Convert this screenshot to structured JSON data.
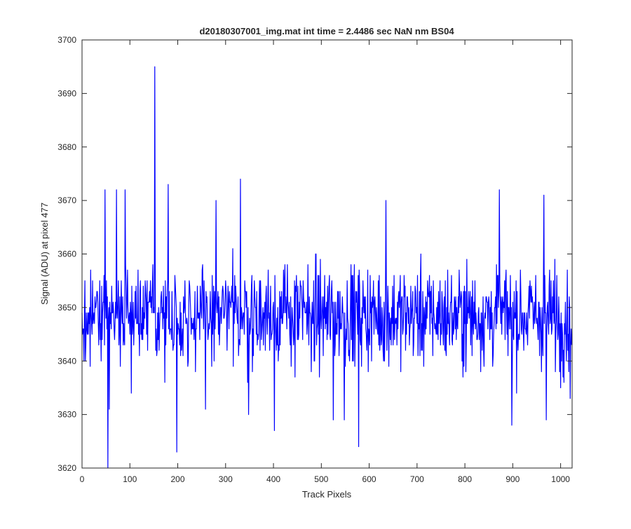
{
  "chart_data": {
    "type": "line",
    "title": "d20180307001_img.mat int time = 2.4486 sec  NaN nm BS04",
    "xlabel": "Track Pixels",
    "ylabel": "Signal (ADU) at pixel 477",
    "xlim": [
      0,
      1024
    ],
    "ylim": [
      3620,
      3700
    ],
    "xticks": [
      0,
      100,
      200,
      300,
      400,
      500,
      600,
      700,
      800,
      900,
      1000
    ],
    "yticks": [
      3620,
      3630,
      3640,
      3650,
      3660,
      3670,
      3680,
      3690,
      3700
    ],
    "grid": false,
    "line_color": "#0000ff",
    "series": [
      {
        "name": "",
        "n_points": 1024,
        "baseline": 3648.5,
        "peaks": [
          {
            "x": 152,
            "y": 3695
          },
          {
            "x": 331,
            "y": 3674
          },
          {
            "x": 48,
            "y": 3672
          },
          {
            "x": 72,
            "y": 3672
          },
          {
            "x": 90,
            "y": 3672
          },
          {
            "x": 180,
            "y": 3673
          },
          {
            "x": 872,
            "y": 3672
          },
          {
            "x": 965,
            "y": 3671
          },
          {
            "x": 280,
            "y": 3670
          },
          {
            "x": 635,
            "y": 3670
          }
        ],
        "troughs": [
          {
            "x": 54,
            "y": 3620
          },
          {
            "x": 57,
            "y": 3631
          },
          {
            "x": 198,
            "y": 3623
          },
          {
            "x": 402,
            "y": 3627
          },
          {
            "x": 578,
            "y": 3624
          },
          {
            "x": 258,
            "y": 3631
          },
          {
            "x": 348,
            "y": 3630
          },
          {
            "x": 525,
            "y": 3629
          },
          {
            "x": 548,
            "y": 3629
          },
          {
            "x": 898,
            "y": 3628
          },
          {
            "x": 970,
            "y": 3629
          },
          {
            "x": 1020,
            "y": 3633
          },
          {
            "x": 1000,
            "y": 3635
          }
        ]
      }
    ]
  }
}
